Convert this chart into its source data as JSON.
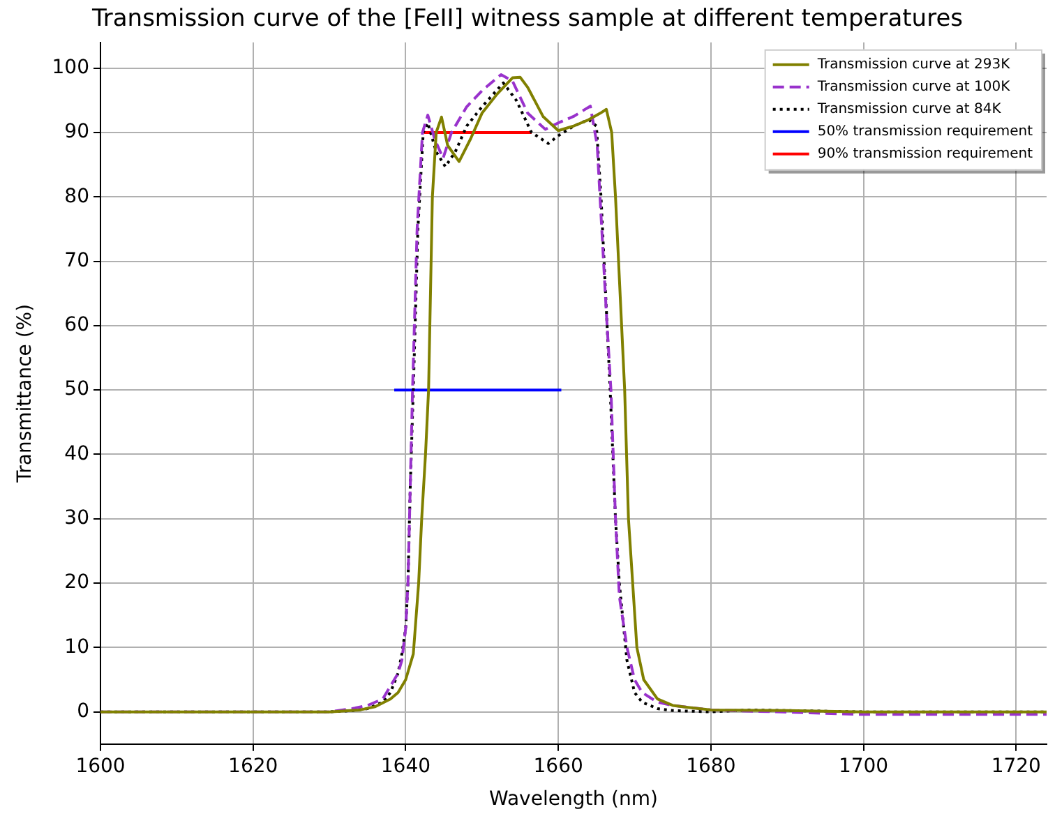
{
  "chart_data": {
    "type": "line",
    "title": "Transmission curve of the [FeII] witness sample at different temperatures",
    "xlabel": "Wavelength (nm)",
    "ylabel": "Transmittance (%)",
    "xlim": [
      1600,
      1724
    ],
    "xticks": [
      1600,
      1620,
      1640,
      1660,
      1680,
      1700,
      1720
    ],
    "ylim": [
      -5,
      104
    ],
    "yticks": [
      0,
      10,
      20,
      30,
      40,
      50,
      60,
      70,
      80,
      90,
      100
    ],
    "grid": true,
    "legend": "top right",
    "marker": "none",
    "series": [
      {
        "name": "Transmission curve at 293K",
        "color": "#808000",
        "line_style": "solid",
        "x": [
          1600,
          1620,
          1630,
          1634,
          1636,
          1638,
          1639,
          1640,
          1641,
          1641.7,
          1642.1,
          1642.6,
          1643,
          1643.5,
          1644,
          1644.7,
          1645.5,
          1647,
          1648.5,
          1650,
          1652,
          1654,
          1655,
          1656,
          1658,
          1660,
          1662,
          1664,
          1665.5,
          1666.3,
          1667,
          1667.5,
          1668.7,
          1669.2,
          1670.3,
          1671.2,
          1673,
          1675,
          1677,
          1680,
          1690,
          1700,
          1724
        ],
        "values": [
          0,
          0,
          0,
          0.3,
          0.8,
          2,
          3,
          5,
          9,
          20,
          30,
          40,
          50,
          80,
          90,
          92.4,
          88,
          85.5,
          89,
          93,
          96,
          98.5,
          98.6,
          97,
          92.5,
          90.3,
          91,
          92,
          93,
          93.6,
          90,
          80,
          50,
          30,
          10,
          5,
          2,
          1,
          0.7,
          0.3,
          0.2,
          0,
          0
        ]
      },
      {
        "name": "Transmission curve at 100K",
        "color": "#9932cc",
        "line_style": "dashed",
        "x": [
          1600,
          1620,
          1630,
          1633,
          1635,
          1637,
          1638,
          1639,
          1639.5,
          1640,
          1640.3,
          1640.5,
          1640.7,
          1640.9,
          1641.5,
          1642.2,
          1642.9,
          1643.8,
          1644.9,
          1646,
          1648,
          1650,
          1652.5,
          1654,
          1656,
          1658.3,
          1660,
          1662,
          1664.2,
          1665.1,
          1665.7,
          1666.3,
          1666.9,
          1667.5,
          1668,
          1669,
          1670,
          1671,
          1673,
          1675,
          1680,
          1700,
          1724
        ],
        "values": [
          0,
          0,
          0,
          0.5,
          1,
          2,
          4,
          6,
          8,
          13,
          20,
          30,
          40,
          50,
          75,
          90,
          92.7,
          89,
          86,
          90,
          94,
          96.5,
          99,
          98,
          93,
          90.5,
          91.5,
          92.5,
          94.1,
          88,
          75,
          62,
          50,
          30,
          18,
          10,
          5,
          3,
          1.5,
          1,
          0.3,
          -0.4,
          -0.4
        ]
      },
      {
        "name": "Transmission curve at 84K",
        "color": "#000000",
        "line_style": "dotted",
        "x": [
          1600,
          1620,
          1630,
          1633,
          1635,
          1637,
          1638,
          1639,
          1639.5,
          1640,
          1640.3,
          1640.6,
          1641,
          1641.6,
          1642.3,
          1642.9,
          1644,
          1645.2,
          1646.5,
          1648,
          1650,
          1652.8,
          1654.5,
          1656.5,
          1658.7,
          1660,
          1662,
          1664,
          1665,
          1665.6,
          1666.2,
          1666.8,
          1667.5,
          1668,
          1669,
          1670,
          1671,
          1673,
          1675,
          1680,
          1685,
          1690,
          1700,
          1724
        ],
        "values": [
          0,
          0,
          0,
          0.2,
          0.5,
          1.5,
          3,
          6,
          9,
          13,
          20,
          35,
          50,
          75,
          90,
          91.5,
          87,
          84.7,
          87,
          91,
          94,
          97.7,
          95,
          90,
          88.3,
          89.5,
          91,
          92,
          91,
          80,
          65,
          50,
          30,
          20,
          8,
          3,
          1.5,
          0.5,
          0.2,
          0,
          0.3,
          0.2,
          0,
          0
        ]
      },
      {
        "name": "50% transmission requirement",
        "color": "#0000ff",
        "line_style": "solid",
        "x": [
          1638.5,
          1660.4
        ],
        "values": [
          50,
          50
        ]
      },
      {
        "name": "90% transmission requirement",
        "color": "#ff0000",
        "line_style": "solid",
        "x": [
          1642.4,
          1656.5
        ],
        "values": [
          90,
          90
        ]
      }
    ]
  }
}
